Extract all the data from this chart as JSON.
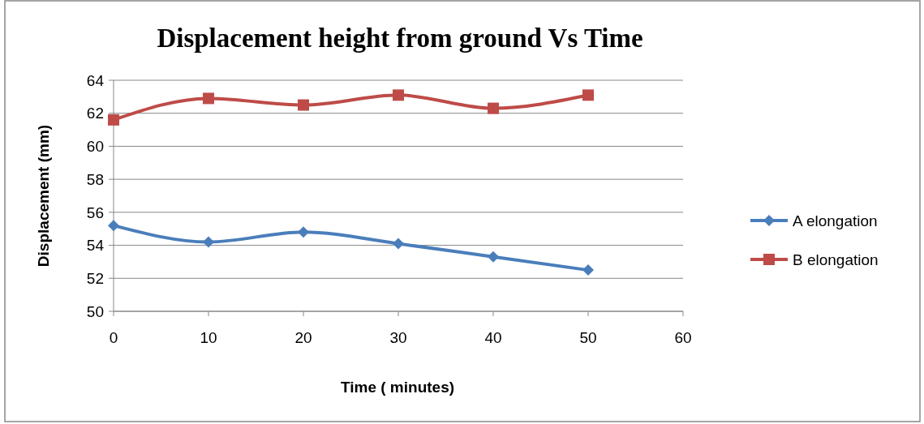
{
  "chart_data": {
    "type": "line",
    "title": "Displacement height from ground Vs Time",
    "xlabel": "Time ( minutes)",
    "ylabel": "Displacement (mm)",
    "x": [
      0,
      10,
      20,
      30,
      40,
      50
    ],
    "series": [
      {
        "name": "A elongation",
        "color": "#4a7ebb",
        "marker": "diamond",
        "values": [
          55.2,
          54.2,
          54.8,
          54.1,
          53.3,
          52.5
        ]
      },
      {
        "name": "B elongation",
        "color": "#be4b48",
        "marker": "square",
        "values": [
          61.6,
          62.9,
          62.5,
          63.1,
          62.3,
          63.1
        ]
      }
    ],
    "xlim": [
      0,
      60
    ],
    "xticks": [
      0,
      10,
      20,
      30,
      40,
      50,
      60
    ],
    "ylim": [
      50,
      64
    ],
    "yticks": [
      50,
      52,
      54,
      56,
      58,
      60,
      62,
      64
    ],
    "grid": "y",
    "legend": "right"
  }
}
